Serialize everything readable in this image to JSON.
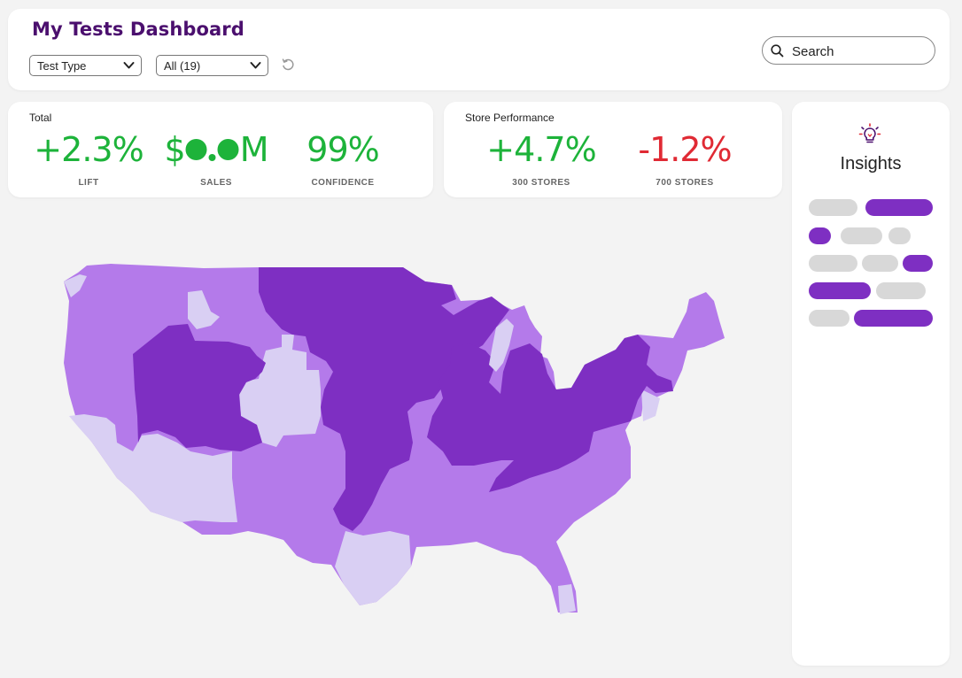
{
  "header": {
    "title": "My Tests Dashboard",
    "filters": [
      {
        "value": "Test Type"
      },
      {
        "value": "All (19)"
      }
    ],
    "reset_icon": "reset-icon",
    "search": {
      "placeholder": "Search",
      "icon": "search-icon"
    }
  },
  "kpi_total": {
    "title": "Total",
    "metrics": [
      {
        "value": "+2.3%",
        "label": "LIFT",
        "status": "positive"
      },
      {
        "value_prefix": "$",
        "value_suffix": "M",
        "masked": true,
        "label": "SALES",
        "status": "positive"
      },
      {
        "value": "99%",
        "label": "CONFIDENCE",
        "status": "positive"
      }
    ]
  },
  "kpi_store": {
    "title": "Store Performance",
    "metrics": [
      {
        "value": "+4.7%",
        "label": "300 STORES",
        "status": "positive"
      },
      {
        "value": "-1.2%",
        "label": "700 STORES",
        "status": "negative"
      }
    ]
  },
  "insights": {
    "title": "Insights",
    "icon": "lightbulb-icon"
  },
  "map": {
    "type": "choropleth",
    "region": "United States"
  },
  "colors": {
    "title": "#4b0f6e",
    "positive": "#1db33a",
    "negative": "#e02a34",
    "purple_dark": "#7e2fc2",
    "purple_mid": "#b47aea",
    "purple_light": "#d9cff3",
    "pill_gray": "#d8d8d8"
  }
}
